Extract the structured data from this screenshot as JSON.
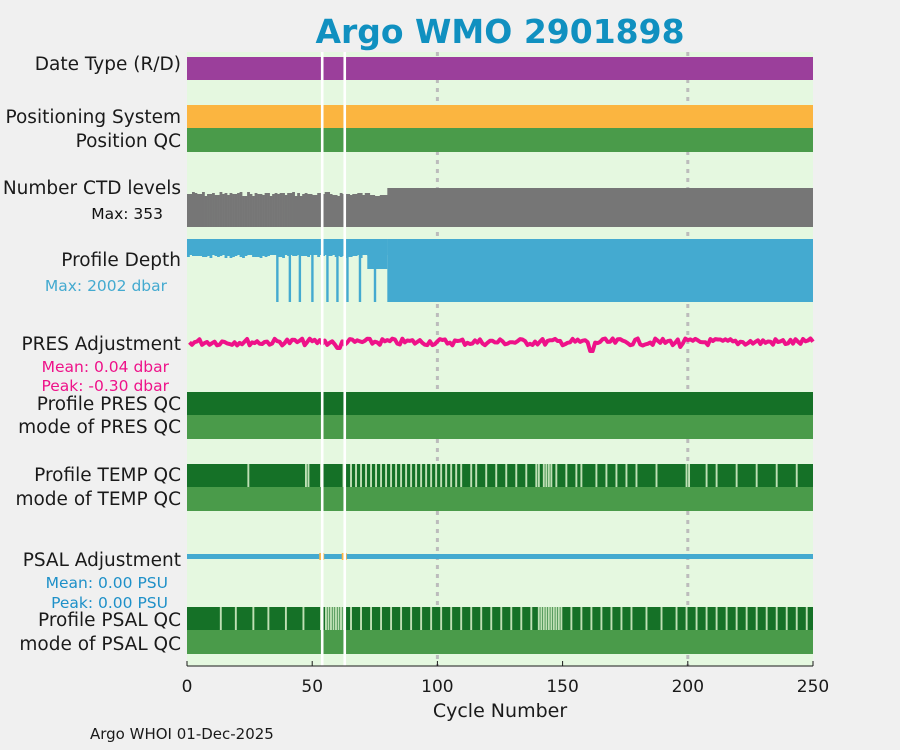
{
  "chart_data": {
    "type": "status-strip",
    "title": "Argo WMO 2901898",
    "xlabel": "Cycle Number",
    "xlim": [
      0,
      250
    ],
    "xticks": [
      0,
      50,
      100,
      150,
      200,
      250
    ],
    "x_gridlines": [
      100,
      200
    ],
    "missing_cycles": [
      54,
      63
    ],
    "n_cycles": 250,
    "panel_background": "#e5f8e0",
    "rows": [
      {
        "id": "date-type",
        "label": "Date Type (R/D)",
        "color": "#9b3f9b"
      },
      {
        "id": "positioning-system",
        "label": "Positioning System",
        "color": "#fbb540"
      },
      {
        "id": "position-qc",
        "label": "Position QC",
        "color": "#4a9b4a"
      },
      {
        "id": "number-ctd-levels",
        "label": "Number CTD levels",
        "note": "Max: 353",
        "max": 353,
        "color": "#767676"
      },
      {
        "id": "profile-depth",
        "label": "Profile Depth",
        "note": "Max: 2002 dbar",
        "max_dbar": 2002,
        "color": "#44aad0"
      },
      {
        "id": "pres-adjustment",
        "label": "PRES Adjustment",
        "notes": [
          "Mean: 0.04 dbar",
          "Peak: -0.30 dbar"
        ],
        "mean": 0.04,
        "peak": -0.3,
        "color": "#ee1289"
      },
      {
        "id": "profile-pres-qc",
        "label": "Profile PRES QC",
        "color": "#157127"
      },
      {
        "id": "mode-pres-qc",
        "label": "mode of PRES QC",
        "color": "#4a9b4a"
      },
      {
        "id": "profile-temp-qc",
        "label": "Profile TEMP QC",
        "color": "#157127",
        "alt_color": "#bfe0b5"
      },
      {
        "id": "mode-temp-qc",
        "label": "mode of TEMP QC",
        "color": "#4a9b4a"
      },
      {
        "id": "psal-adjustment",
        "label": "PSAL Adjustment",
        "notes": [
          "Mean: 0.00 PSU",
          "Peak: 0.00 PSU"
        ],
        "mean": 0.0,
        "peak": 0.0,
        "color": "#44aad0"
      },
      {
        "id": "profile-psal-qc",
        "label": "Profile PSAL QC",
        "color": "#157127",
        "alt_color": "#bfe0b5"
      },
      {
        "id": "mode-psal-qc",
        "label": "mode of PSAL QC",
        "color": "#4a9b4a"
      }
    ],
    "title_color": "#1090c0",
    "pres_note_color": "#ee1289",
    "psal_note_color": "#1e90c8"
  },
  "footer": "Argo WHOI 01-Dec-2025"
}
